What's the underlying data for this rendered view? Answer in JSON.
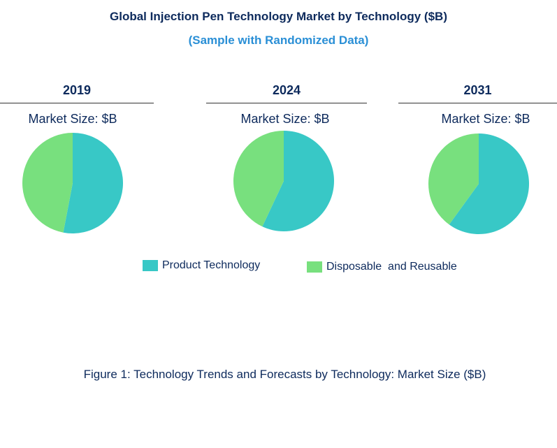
{
  "chart_data": {
    "type": "pie",
    "title": "Global Injection Pen Technology Market by Technology ($B)",
    "subtitle": "(Sample with Randomized Data)",
    "pie_label": "Market Size: $B",
    "legend_position": "bottom",
    "categories": [
      "Product Technology",
      "Disposable  and Reusable"
    ],
    "colors": [
      "#38c8c6",
      "#78e07e"
    ],
    "pies": [
      {
        "year": "2019",
        "values": [
          53,
          47
        ]
      },
      {
        "year": "2024",
        "values": [
          57,
          43
        ]
      },
      {
        "year": "2031",
        "values": [
          60,
          40
        ]
      }
    ],
    "caption": "Figure 1: Technology Trends and Forecasts by Technology: Market Size ($B)"
  }
}
